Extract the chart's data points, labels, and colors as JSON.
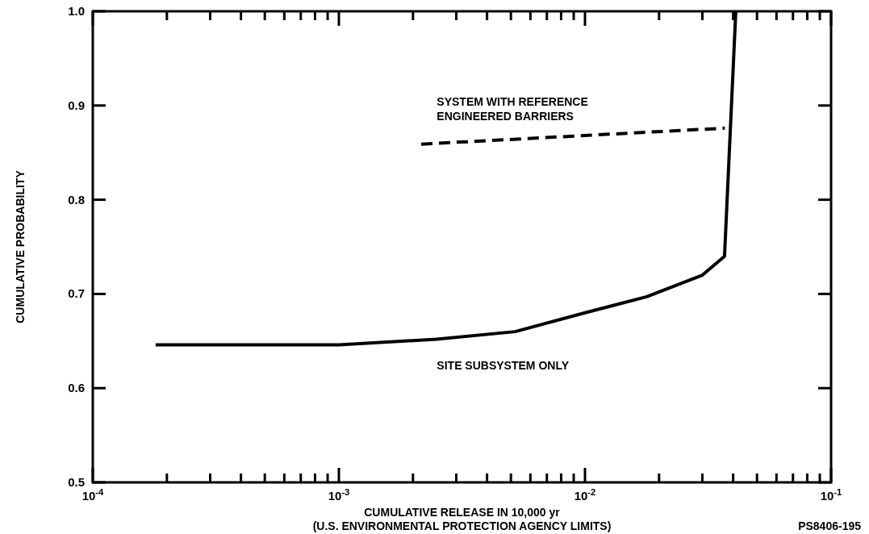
{
  "chart_data": {
    "type": "line",
    "xlabel": "CUMULATIVE RELEASE IN 10,000 yr\n(U.S. ENVIRONMENTAL PROTECTION AGENCY LIMITS)",
    "ylabel": "CUMULATIVE PROBABILITY",
    "log": "x",
    "xlim": [
      0.0001,
      0.1
    ],
    "ylim": [
      0.5,
      1.0
    ],
    "xticks": [
      {
        "value": 0.0001,
        "label": "10$^{-4}$"
      },
      {
        "value": 0.0002,
        "label": null
      },
      {
        "value": 0.0003,
        "label": null
      },
      {
        "value": 0.0004,
        "label": null
      },
      {
        "value": 0.0005,
        "label": null
      },
      {
        "value": 0.0006,
        "label": null
      },
      {
        "value": 0.0007,
        "label": null
      },
      {
        "value": 0.0008,
        "label": null
      },
      {
        "value": 0.0009,
        "label": null
      },
      {
        "value": 0.001,
        "label": "10$^{-3}$"
      },
      {
        "value": 0.002,
        "label": null
      },
      {
        "value": 0.003,
        "label": null
      },
      {
        "value": 0.004,
        "label": null
      },
      {
        "value": 0.005,
        "label": null
      },
      {
        "value": 0.006,
        "label": null
      },
      {
        "value": 0.007,
        "label": null
      },
      {
        "value": 0.008,
        "label": null
      },
      {
        "value": 0.009,
        "label": null
      },
      {
        "value": 0.01,
        "label": "10$^{-2}$"
      },
      {
        "value": 0.02,
        "label": null
      },
      {
        "value": 0.03,
        "label": null
      },
      {
        "value": 0.04,
        "label": null
      },
      {
        "value": 0.05,
        "label": null
      },
      {
        "value": 0.06,
        "label": null
      },
      {
        "value": 0.07,
        "label": null
      },
      {
        "value": 0.08,
        "label": null
      },
      {
        "value": 0.09,
        "label": null
      },
      {
        "value": 0.1,
        "label": "10$^{-1}$"
      }
    ],
    "yticks": [
      0.5,
      0.6,
      0.7,
      0.8,
      0.9,
      {
        "value": 1.0,
        "label": "1.0"
      }
    ],
    "series": [
      {
        "color": "#000000",
        "line_style": "solid",
        "x": [
          0.00018,
          0.001,
          0.0025,
          0.0052,
          0.01,
          0.0178,
          0.03,
          0.0369,
          0.041
        ],
        "values": [
          0.646,
          0.646,
          0.652,
          0.66,
          0.68,
          0.697,
          0.72,
          0.74,
          1.0
        ]
      },
      {
        "color": "#000000",
        "line_style": "dashed",
        "x": [
          0.00216,
          0.037
        ],
        "values": [
          0.859,
          0.876
        ]
      }
    ],
    "annotations": [
      "SYSTEM WITH REFERENCE\nENGINEERED BARRIERS",
      "SITE SUBSYSTEM ONLY",
      "PS8406-195"
    ]
  }
}
